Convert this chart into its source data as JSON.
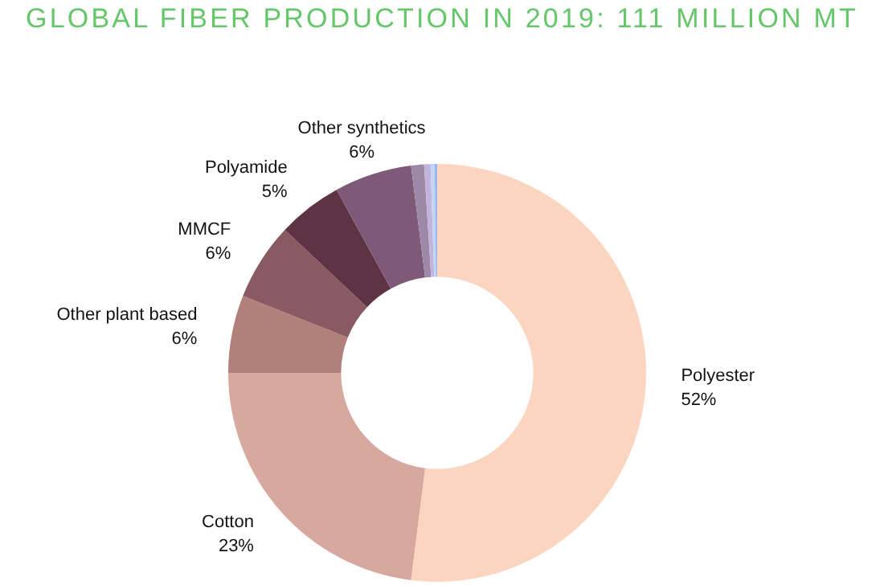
{
  "chart_data": {
    "type": "donut",
    "title": "GLOBAL FIBER PRODUCTION IN 2019: 111 MILLION MT",
    "categories": [
      "Polyester",
      "Cotton",
      "Other plant based",
      "MMCF",
      "Polyamide",
      "Other synthetics",
      null,
      null,
      null,
      null
    ],
    "values": [
      52,
      23,
      6,
      6,
      5,
      6,
      1,
      0.5,
      0.3,
      0.2
    ],
    "value_labels": [
      "52%",
      "23%",
      "6%",
      "6%",
      "5%",
      "6%",
      null,
      null,
      null,
      null
    ],
    "colors": [
      "#fbd5c0",
      "#d7a99e",
      "#b1807a",
      "#8a5a62",
      "#5e3444",
      "#7e5a78",
      "#9e88a8",
      "#c3b4dc",
      "#c4d4f4",
      "#9ab8ec"
    ],
    "legend": false
  }
}
